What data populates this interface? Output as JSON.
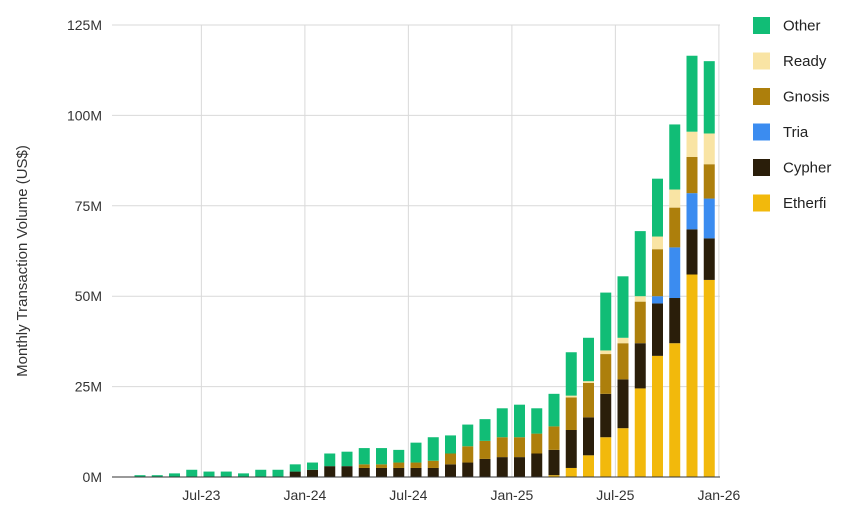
{
  "chart_data": {
    "type": "bar",
    "stacked": true,
    "ylabel": "Monthly Transaction Volume (US$)",
    "y_ticks": [
      "0M",
      "25M",
      "50M",
      "75M",
      "100M",
      "125M"
    ],
    "ylim": [
      0,
      125
    ],
    "y_unit": "M US$",
    "x_tick_labels": [
      {
        "label": "Jul-23",
        "index": 3
      },
      {
        "label": "Jan-24",
        "index": 9
      },
      {
        "label": "Jul-24",
        "index": 15
      },
      {
        "label": "Jan-25",
        "index": 21
      },
      {
        "label": "Jul-25",
        "index": 27
      },
      {
        "label": "Jan-26",
        "index": 33
      }
    ],
    "categories": [
      "Apr-23",
      "May-23",
      "Jun-23",
      "Jul-23",
      "Aug-23",
      "Sep-23",
      "Oct-23",
      "Nov-23",
      "Dec-23",
      "Jan-24",
      "Feb-24",
      "Mar-24",
      "Apr-24",
      "May-24",
      "Jun-24",
      "Jul-24",
      "Aug-24",
      "Sep-24",
      "Oct-24",
      "Nov-24",
      "Dec-24",
      "Jan-25",
      "Feb-25",
      "Mar-25",
      "Apr-25",
      "May-25",
      "Jun-25",
      "Jul-25",
      "Aug-25",
      "Sep-25",
      "Oct-25",
      "Nov-25",
      "Dec-25",
      "Jan-26"
    ],
    "series": [
      {
        "name": "Etherfi",
        "color": "#f2b90c",
        "values": [
          0,
          0,
          0,
          0,
          0,
          0,
          0,
          0,
          0,
          0,
          0,
          0,
          0,
          0,
          0,
          0,
          0,
          0,
          0,
          0,
          0,
          0,
          0,
          0,
          0.5,
          2.5,
          6,
          11,
          13.5,
          24.5,
          33.5,
          37,
          56,
          54.5
        ]
      },
      {
        "name": "Cypher",
        "color": "#2a1e0a",
        "values": [
          0,
          0,
          0,
          0,
          0,
          0,
          0,
          0,
          0,
          1.5,
          2,
          3,
          3,
          2.5,
          2.5,
          2.5,
          2.5,
          2.5,
          3.5,
          4,
          5,
          5.5,
          5.5,
          6.5,
          7,
          10.5,
          10.5,
          12,
          13.5,
          12.5,
          14.5,
          12.5,
          12.5,
          11.5
        ]
      },
      {
        "name": "Tria",
        "color": "#3b8cf0",
        "values": [
          0,
          0,
          0,
          0,
          0,
          0,
          0,
          0,
          0,
          0,
          0,
          0,
          0,
          0,
          0,
          0,
          0,
          0,
          0,
          0,
          0,
          0,
          0,
          0,
          0,
          0,
          0,
          0,
          0,
          0,
          2,
          14,
          10,
          11
        ]
      },
      {
        "name": "Gnosis",
        "color": "#ad7f0c",
        "values": [
          0,
          0,
          0,
          0,
          0,
          0,
          0,
          0,
          0,
          0,
          0,
          0,
          0,
          1,
          1,
          1.5,
          1.5,
          2,
          3,
          4.5,
          5,
          5.5,
          5.5,
          5.5,
          6.5,
          9,
          9.5,
          11,
          10,
          11.5,
          13,
          11,
          10,
          9.5
        ]
      },
      {
        "name": "Ready",
        "color": "#f9e4a4",
        "values": [
          0,
          0,
          0,
          0,
          0,
          0,
          0,
          0,
          0,
          0,
          0,
          0,
          0,
          0,
          0,
          0,
          0,
          0,
          0,
          0,
          0,
          0,
          0,
          0,
          0,
          0.5,
          0.5,
          1,
          1.5,
          1.5,
          3.5,
          5,
          7,
          8.5
        ]
      },
      {
        "name": "Other",
        "color": "#11bd76",
        "values": [
          0.5,
          0.5,
          1,
          2,
          1.5,
          1.5,
          1,
          2,
          2,
          2,
          2,
          3.5,
          4,
          4.5,
          4.5,
          3.5,
          5.5,
          6.5,
          5,
          6,
          6,
          8,
          9,
          7,
          9,
          12,
          12,
          16,
          17,
          18,
          16,
          18,
          21,
          20
        ]
      }
    ],
    "legend": [
      "Other",
      "Ready",
      "Gnosis",
      "Tria",
      "Cypher",
      "Etherfi"
    ],
    "legend_position": "right",
    "grid": true
  }
}
